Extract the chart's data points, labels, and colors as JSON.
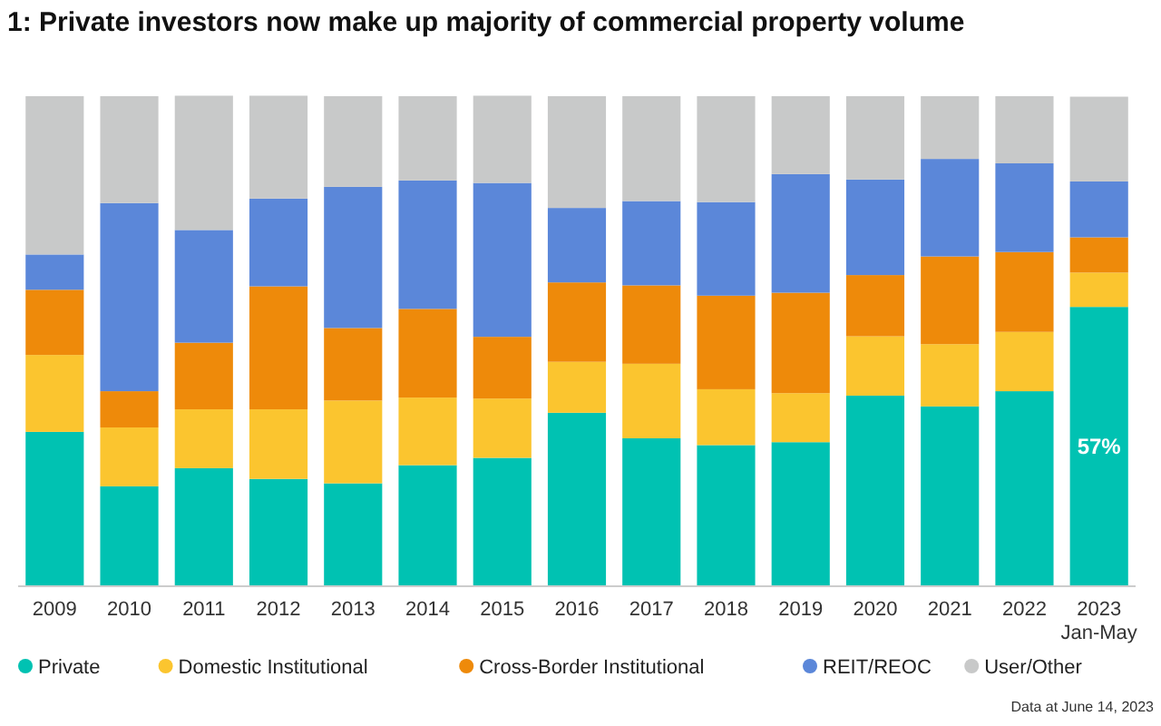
{
  "chart_data": {
    "type": "bar",
    "title": "1: Private investors now make up majority of commercial property volume",
    "categories": [
      "2009",
      "2010",
      "2011",
      "2012",
      "2013",
      "2014",
      "2015",
      "2016",
      "2017",
      "2018",
      "2019",
      "2020",
      "2021",
      "2022",
      "2023\nJan-May"
    ],
    "stacked": true,
    "legend": "bottom",
    "ylim": [
      0,
      100
    ],
    "series": [
      {
        "name": "Private",
        "color": "#00c2b2",
        "values": [
          31.5,
          20.4,
          24.1,
          21.9,
          21,
          24.7,
          26.2,
          35.4,
          30.2,
          28.8,
          29.4,
          38.9,
          36.7,
          39.8,
          57
        ],
        "value_labels": [
          null,
          null,
          null,
          null,
          null,
          null,
          null,
          null,
          null,
          null,
          null,
          null,
          null,
          null,
          "57%"
        ]
      },
      {
        "name": "Domestic Institutional",
        "color": "#fbc52f",
        "values": [
          15.7,
          12,
          12,
          14.2,
          16.9,
          13.8,
          12.1,
          10.4,
          15.2,
          11.4,
          10,
          12.1,
          12.7,
          12.1,
          7
        ]
      },
      {
        "name": "Cross-Border Institutional",
        "color": "#ee8a0a",
        "values": [
          13.3,
          7.4,
          13.6,
          25.1,
          14.8,
          18.1,
          12.6,
          16.2,
          16,
          19.1,
          20.5,
          12.5,
          17.9,
          16.3,
          7.2
        ]
      },
      {
        "name": "REIT/REOC",
        "color": "#5b87d9",
        "values": [
          7.2,
          38.4,
          23,
          17.9,
          28.8,
          26.2,
          31.4,
          15.2,
          17.2,
          19.1,
          24.2,
          19.5,
          19.9,
          18.1,
          11.4
        ]
      },
      {
        "name": "User/Other",
        "color": "#c8c9c9",
        "values": [
          32.3,
          21.8,
          27.4,
          21,
          18.5,
          17.2,
          17.8,
          22.8,
          21.4,
          21.6,
          15.9,
          17,
          12.8,
          13.7,
          17.3
        ]
      }
    ],
    "annotations": [
      "Data at June 14, 2023"
    ]
  }
}
